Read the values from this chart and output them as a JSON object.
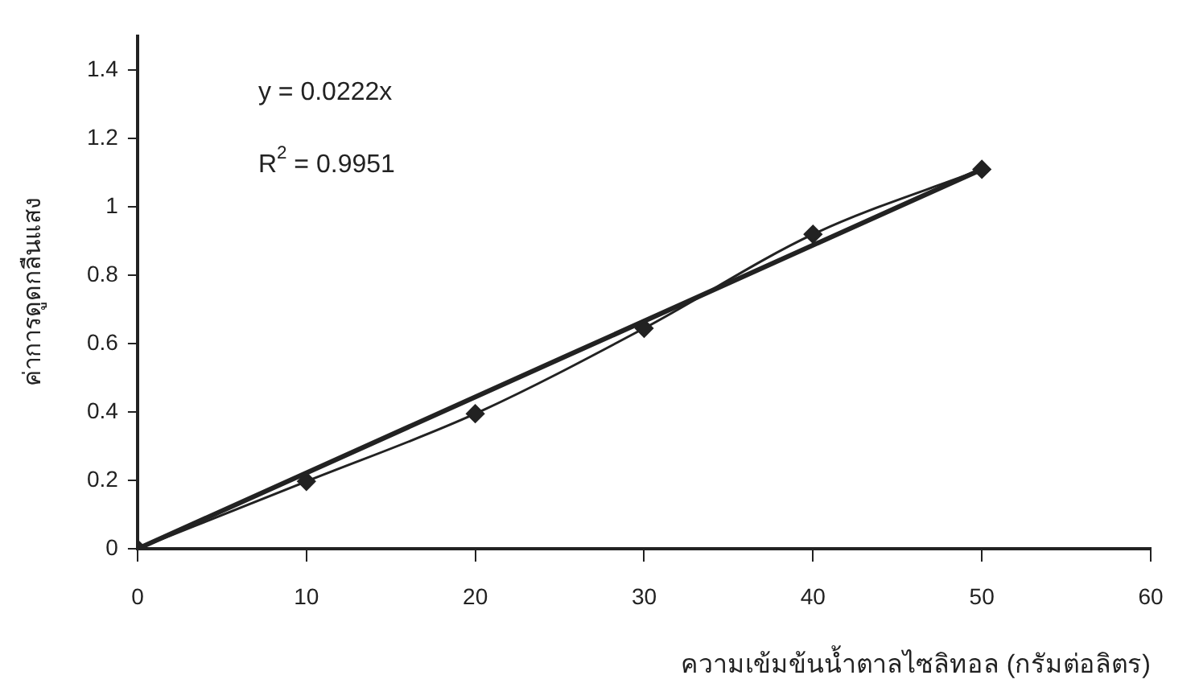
{
  "chart_data": {
    "type": "line",
    "xlabel": "ความเข้มข้นน้ำตาลไซลิทอล (กรัมต่อลิตร)",
    "ylabel": "ค่าการดูดกลืนแสง",
    "annotations": [
      "y = 0.0222x",
      "R$^{2}$ = 0.9951"
    ],
    "x": [
      0,
      10,
      20,
      30,
      40,
      50
    ],
    "series": [
      {
        "color": "#222222",
        "marker": "diamond",
        "values": [
          0,
          0.197,
          0.395,
          0.645,
          0.92,
          1.11
        ]
      },
      {
        "color": "#222222",
        "marker": "none",
        "x": [
          0,
          50
        ],
        "values": [
          0,
          1.11
        ]
      }
    ],
    "xlim": [
      0,
      60
    ],
    "xticks": [
      0,
      10,
      20,
      30,
      40,
      50,
      60
    ],
    "ylim": [
      0,
      1.5
    ],
    "yticks": [
      0,
      0.2,
      0.4,
      0.6,
      0.8,
      1,
      1.2,
      1.4
    ],
    "grid": false,
    "legend": false
  }
}
